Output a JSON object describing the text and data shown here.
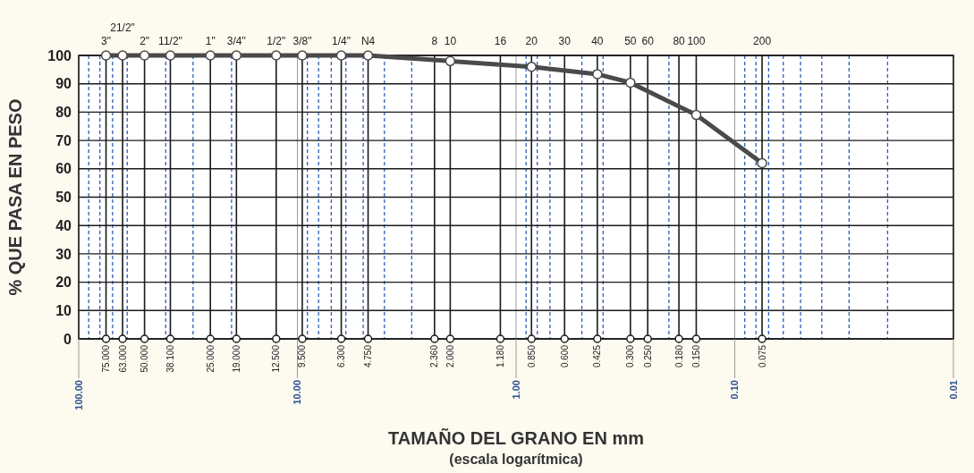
{
  "chart_data": {
    "type": "line",
    "xlabel": "TAMAÑO DEL GRANO EN mm",
    "ylabel": "% QUE PASA EN PESO",
    "log": "x",
    "grid": true,
    "marker": "circle",
    "line_style": "solid",
    "xlim": [
      100,
      0.01
    ],
    "ylim": [
      0,
      100
    ],
    "yticks": [
      0,
      10,
      20,
      30,
      40,
      50,
      60,
      70,
      80,
      90,
      100
    ],
    "xticks": [
      {
        "value": 100,
        "label": "100.00"
      },
      {
        "value": 10,
        "label": "10.00"
      },
      {
        "value": 1,
        "label": "1.00"
      },
      {
        "value": 0.1,
        "label": "0.10"
      },
      {
        "value": 0.01,
        "label": "0.01"
      },
      {
        "value": 90,
        "label": null
      },
      {
        "value": 80,
        "label": null
      },
      {
        "value": 70,
        "label": null
      },
      {
        "value": 60,
        "label": null
      },
      {
        "value": 40,
        "label": null
      },
      {
        "value": 30,
        "label": null
      },
      {
        "value": 20,
        "label": null
      },
      {
        "value": 9,
        "label": null
      },
      {
        "value": 8,
        "label": null
      },
      {
        "value": 7,
        "label": null
      },
      {
        "value": 6,
        "label": null
      },
      {
        "value": 5,
        "label": null
      },
      {
        "value": 4,
        "label": null
      },
      {
        "value": 3,
        "label": null
      },
      {
        "value": 0.9,
        "label": null
      },
      {
        "value": 0.8,
        "label": null
      },
      {
        "value": 0.7,
        "label": null
      },
      {
        "value": 0.5,
        "label": null
      },
      {
        "value": 0.4,
        "label": null
      },
      {
        "value": 0.2,
        "label": null
      },
      {
        "value": 0.09,
        "label": null
      },
      {
        "value": 0.08,
        "label": null
      },
      {
        "value": 0.07,
        "label": null
      },
      {
        "value": 0.06,
        "label": null
      },
      {
        "value": 0.05,
        "label": null
      },
      {
        "value": 0.04,
        "label": null
      },
      {
        "value": 0.03,
        "label": null
      },
      {
        "value": 0.02,
        "label": null
      }
    ],
    "ref_lines": [
      {
        "axis": "x",
        "value": 75,
        "label": "75.000"
      },
      {
        "axis": "x",
        "value": 63,
        "label": "63.000"
      },
      {
        "axis": "x",
        "value": 50,
        "label": "50.000"
      },
      {
        "axis": "x",
        "value": 38.1,
        "label": "38.100"
      },
      {
        "axis": "x",
        "value": 25,
        "label": "25.000"
      },
      {
        "axis": "x",
        "value": 19,
        "label": "19.000"
      },
      {
        "axis": "x",
        "value": 12.5,
        "label": "12.500"
      },
      {
        "axis": "x",
        "value": 9.5,
        "label": "9.500"
      },
      {
        "axis": "x",
        "value": 6.3,
        "label": "6.300"
      },
      {
        "axis": "x",
        "value": 4.75,
        "label": "4.750"
      },
      {
        "axis": "x",
        "value": 2.36,
        "label": "2.360"
      },
      {
        "axis": "x",
        "value": 2,
        "label": "2.000"
      },
      {
        "axis": "x",
        "value": 1.18,
        "label": "1.180"
      },
      {
        "axis": "x",
        "value": 0.85,
        "label": "0.850"
      },
      {
        "axis": "x",
        "value": 0.6,
        "label": "0.600"
      },
      {
        "axis": "x",
        "value": 0.425,
        "label": "0.425"
      },
      {
        "axis": "x",
        "value": 0.3,
        "label": "0.300"
      },
      {
        "axis": "x",
        "value": 0.25,
        "label": "0.250"
      },
      {
        "axis": "x",
        "value": 0.18,
        "label": "0.180"
      },
      {
        "axis": "x",
        "value": 0.15,
        "label": "0.150"
      },
      {
        "axis": "x",
        "value": 0.075,
        "label": "0.075"
      }
    ],
    "annotations": [
      "(escala logarítmica)",
      {
        "text": "3\"",
        "x": 75,
        "y": 100
      },
      {
        "text": "21/2\"",
        "x": 63,
        "y": 100
      },
      {
        "text": "2\"",
        "x": 50,
        "y": 100
      },
      {
        "text": "11/2\"",
        "x": 38.1,
        "y": 100
      },
      {
        "text": "1\"",
        "x": 25,
        "y": 100
      },
      {
        "text": "3/4\"",
        "x": 19,
        "y": 100
      },
      {
        "text": "1/2\"",
        "x": 12.5,
        "y": 100
      },
      {
        "text": "3/8\"",
        "x": 9.5,
        "y": 100
      },
      {
        "text": "1/4\"",
        "x": 6.3,
        "y": 100
      },
      {
        "text": "N4",
        "x": 4.75,
        "y": 100
      },
      {
        "text": "8",
        "x": 2.36,
        "y": 100
      },
      {
        "text": "10",
        "x": 2,
        "y": 100
      },
      {
        "text": "16",
        "x": 1.18,
        "y": 100
      },
      {
        "text": "20",
        "x": 0.85,
        "y": 100
      },
      {
        "text": "30",
        "x": 0.6,
        "y": 100
      },
      {
        "text": "40",
        "x": 0.425,
        "y": 100
      },
      {
        "text": "50",
        "x": 0.3,
        "y": 100
      },
      {
        "text": "60",
        "x": 0.25,
        "y": 100
      },
      {
        "text": "80",
        "x": 0.18,
        "y": 100
      },
      {
        "text": "100",
        "x": 0.15,
        "y": 100
      },
      {
        "text": "200",
        "x": 0.075,
        "y": 100
      }
    ],
    "series": [
      {
        "color": "#4a4a4a",
        "x": [
          75,
          63,
          50,
          38.1,
          25,
          19,
          12.5,
          9.5,
          6.3,
          4.75,
          2,
          0.85,
          0.425,
          0.3,
          0.15,
          0.075
        ],
        "values": [
          100,
          100,
          100,
          100,
          100,
          100,
          100,
          100,
          100,
          100,
          98,
          96,
          93.4,
          90.4,
          79,
          62
        ]
      }
    ]
  }
}
